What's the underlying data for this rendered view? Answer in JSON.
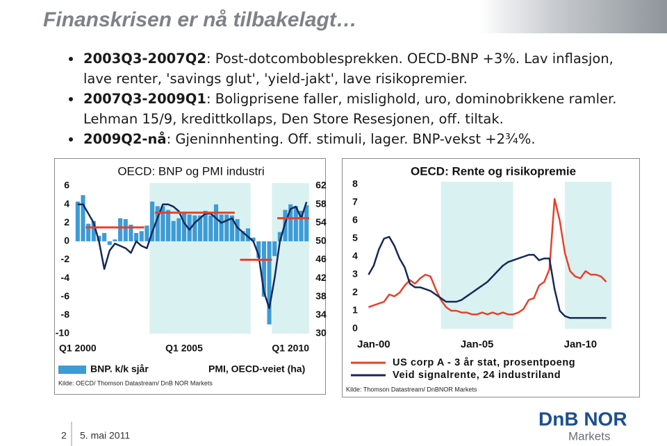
{
  "title": "Finanskrisen er nå tilbakelagt…",
  "bullets": [
    {
      "bold": "2003Q3-2007Q2",
      "text": ": Post-dotcomboblesprekken. OECD-BNP +3%. Lav inflasjon, lave renter, 'savings glut', 'yield-jakt', lave risikopremier."
    },
    {
      "bold": "2007Q3-2009Q1",
      "text": ": Boligprisene faller, mislighold, uro, dominobrikkene ramler. Lehman 15/9, kredittkollaps, Den Store Resesjonen, off. tiltak."
    },
    {
      "bold": "2009Q2-nå",
      "text": ": Gjeninnhenting. Off. stimuli, lager. BNP-vekst +2¾%."
    }
  ],
  "chart_data": [
    {
      "type": "bar",
      "title": "OECD: BNP og PMI industri",
      "source": "Kilde: OECD/ Thomson Datastream/ DnB NOR Markets",
      "categories": [
        "Q1 2000",
        null,
        null,
        null,
        null,
        null,
        null,
        null,
        null,
        null,
        null,
        null,
        null,
        null,
        null,
        null,
        null,
        null,
        null,
        null,
        "Q1 2005",
        null,
        null,
        null,
        null,
        null,
        null,
        null,
        null,
        null,
        null,
        null,
        null,
        null,
        null,
        null,
        null,
        null,
        null,
        null,
        "Q1 2010",
        null,
        null,
        null
      ],
      "series": [
        {
          "name": "BNP. k/k sjår",
          "color": "#3d9bd6",
          "type": "bar",
          "values": [
            4.3,
            5.0,
            1.9,
            2.2,
            0.6,
            0.9,
            -0.4,
            0.2,
            2.5,
            2.4,
            1.8,
            0.9,
            1.1,
            1.7,
            4.3,
            3.8,
            3.8,
            3.4,
            2.2,
            2.5,
            3.2,
            2.9,
            2.8,
            2.8,
            3.3,
            2.8,
            4.0,
            2.9,
            2.9,
            2.8,
            2.4,
            1.1,
            1.4,
            0.4,
            -1.8,
            -6.0,
            -9.0,
            -1.6,
            1.0,
            3.4,
            4.0,
            3.8,
            3.3,
            3.9
          ]
        },
        {
          "name": "PMI, OECD-veiet (ha)",
          "color": "#14285a",
          "type": "line",
          "axis": "y2",
          "values": [
            58,
            58,
            56,
            54,
            50,
            44,
            48,
            49.5,
            49,
            48.5,
            47.5,
            50,
            49,
            48.5,
            52,
            55,
            58,
            58,
            57.5,
            56.5,
            54,
            52.5,
            54,
            55,
            56,
            56,
            55,
            54,
            54.5,
            55,
            53,
            52,
            51,
            50,
            47,
            39,
            35.5,
            42,
            50,
            54,
            57,
            57.5,
            55,
            58.5
          ]
        }
      ],
      "averages": {
        "color": "#e8402a",
        "segments": [
          {
            "start": 2,
            "end": 12,
            "value": 1.5
          },
          {
            "start": 15,
            "end": 29,
            "value": 3.1
          },
          {
            "start": 31,
            "end": 36,
            "value": -2.0
          },
          {
            "start": 38,
            "end": 43,
            "value": 2.5
          }
        ]
      },
      "shaded": {
        "color": "#daf1f1",
        "ranges": [
          [
            14,
            32
          ],
          [
            37,
            43
          ]
        ]
      },
      "ylim": [
        -10,
        6
      ],
      "yticks": [
        6,
        4,
        2,
        0,
        -2,
        -4,
        -6,
        -8,
        -10
      ],
      "y2lim": [
        30,
        62
      ],
      "y2ticks": [
        62,
        58,
        54,
        50,
        46,
        42,
        38,
        34,
        30
      ]
    },
    {
      "type": "line",
      "title": "OECD: Rente og risikopremie",
      "source": "Kilde: Thomson Datastream/ DnBNOR Markets",
      "x": [
        "1999-10",
        "2000-01",
        "2000-04",
        "2000-07",
        "2000-10",
        "2001-01",
        "2001-04",
        "2001-07",
        "2001-10",
        "2002-01",
        "2002-04",
        "2002-07",
        "2002-10",
        "2003-01",
        "2003-04",
        "2003-07",
        "2003-10",
        "2004-01",
        "2004-04",
        "2004-07",
        "2004-10",
        "2005-01",
        "2005-04",
        "2005-07",
        "2005-10",
        "2006-01",
        "2006-04",
        "2006-07",
        "2006-10",
        "2007-01",
        "2007-04",
        "2007-07",
        "2007-10",
        "2008-01",
        "2008-04",
        "2008-07",
        "2008-10",
        "2009-01",
        "2009-04",
        "2009-07",
        "2009-10",
        "2010-01",
        "2010-04",
        "2010-07",
        "2010-10",
        "2011-01",
        "2011-04"
      ],
      "series": [
        {
          "name": "US corp A - 3 år stat, prosentpoeng",
          "color": "#e8402a",
          "values": [
            1.2,
            1.3,
            1.4,
            1.5,
            1.9,
            1.8,
            2.0,
            2.4,
            2.7,
            2.5,
            2.8,
            3.0,
            2.9,
            2.2,
            1.6,
            1.2,
            1.0,
            1.0,
            0.9,
            0.9,
            0.8,
            0.8,
            0.9,
            0.8,
            0.9,
            0.8,
            0.9,
            0.8,
            0.8,
            0.9,
            1.1,
            1.6,
            1.7,
            2.4,
            2.6,
            3.3,
            7.2,
            6.0,
            4.2,
            3.2,
            2.9,
            2.8,
            3.2,
            3.0,
            3.0,
            2.9,
            2.6
          ]
        },
        {
          "name": "Veid signalrente, 24 industriland",
          "color": "#14285a",
          "values": [
            3.0,
            3.5,
            4.4,
            5.0,
            5.1,
            4.6,
            3.9,
            3.4,
            2.5,
            2.3,
            2.3,
            2.2,
            2.1,
            1.9,
            1.7,
            1.5,
            1.5,
            1.5,
            1.6,
            1.8,
            2.0,
            2.2,
            2.4,
            2.6,
            2.9,
            3.2,
            3.5,
            3.7,
            3.8,
            3.9,
            4.0,
            4.1,
            4.1,
            3.8,
            3.9,
            3.9,
            2.2,
            1.0,
            0.7,
            0.6,
            0.6,
            0.6,
            0.6,
            0.6,
            0.6,
            0.6,
            0.6
          ]
        }
      ],
      "shaded": {
        "color": "#daf1f1",
        "ranges": [
          [
            "2003-04",
            "2006-10"
          ],
          [
            "2009-04",
            "2011-07"
          ]
        ]
      },
      "xlim": [
        "1999-07",
        "2011-07"
      ],
      "xticks": [
        {
          "value": "2000-01",
          "label": "Jan-00"
        },
        {
          "value": "2005-01",
          "label": "Jan-05"
        },
        {
          "value": "2010-01",
          "label": "Jan-10"
        }
      ],
      "ylim": [
        0,
        8
      ],
      "yticks": [
        8,
        7,
        6,
        5,
        4,
        3,
        2,
        1,
        0
      ]
    }
  ],
  "footer": {
    "page": "2",
    "date": "5. mai 2011"
  },
  "logo": {
    "name": "DnB NOR",
    "sub": "Markets"
  }
}
